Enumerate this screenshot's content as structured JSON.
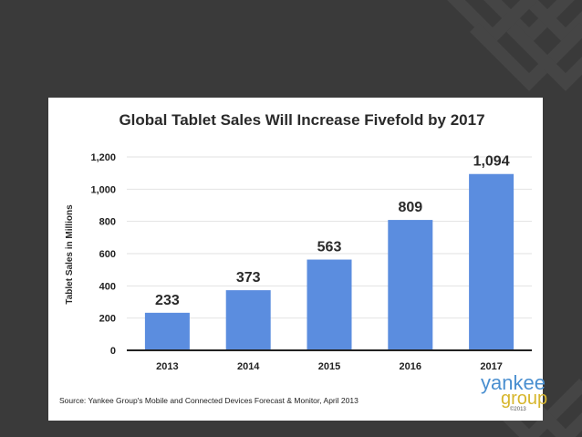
{
  "colors": {
    "background": "#3a3a3a",
    "card": "#ffffff",
    "bar": "#5b8ddf",
    "axis": "#222222",
    "grid": "#e2e2e2",
    "logo_primary": "#4a8fd0",
    "logo_secondary": "#d7b62d"
  },
  "chart_data": {
    "type": "bar",
    "title": "Global Tablet Sales Will Increase Fivefold by 2017",
    "xlabel": "",
    "ylabel": "Tablet Sales in Millions",
    "categories": [
      "2013",
      "2014",
      "2015",
      "2016",
      "2017"
    ],
    "values": [
      233,
      373,
      563,
      809,
      1094
    ],
    "value_labels": [
      "233",
      "373",
      "563",
      "809",
      "1,094"
    ],
    "ylim": [
      0,
      1200
    ],
    "yticks": [
      0,
      200,
      400,
      600,
      800,
      1000,
      1200
    ],
    "ytick_labels": [
      "0",
      "200",
      "400",
      "600",
      "800",
      "1,000",
      "1,200"
    ],
    "grid": true,
    "source": "Source: Yankee Group's Mobile and Connected Devices Forecast & Monitor, April 2013"
  },
  "logo": {
    "word1": "yankee",
    "word2": "group",
    "year": "©2013"
  }
}
